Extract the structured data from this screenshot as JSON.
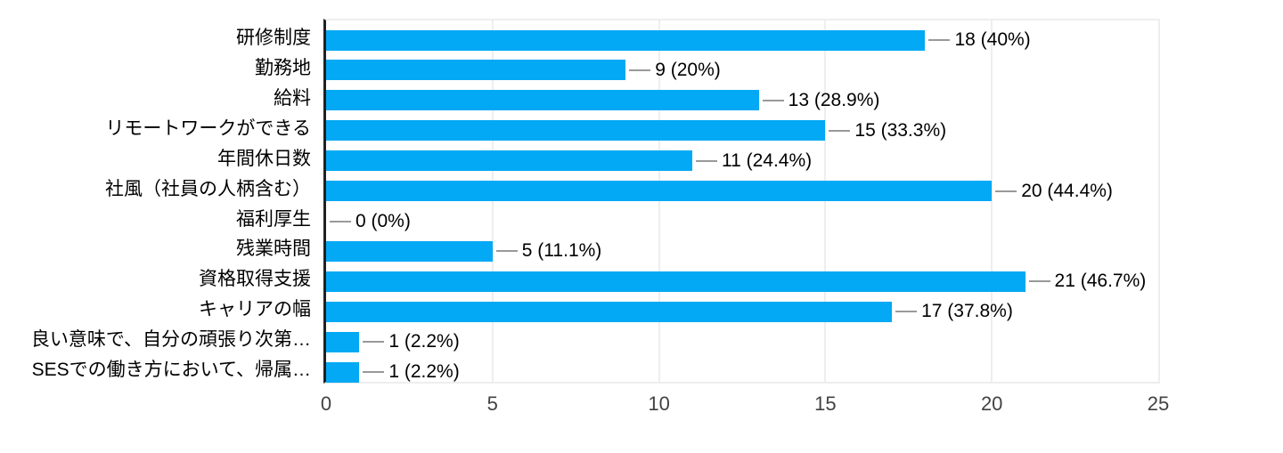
{
  "chart_data": {
    "type": "bar",
    "orientation": "horizontal",
    "categories": [
      "研修制度",
      "勤務地",
      "給料",
      "リモートワークができる",
      "年間休日数",
      "社風（社員の人柄含む）",
      "福利厚生",
      "残業時間",
      "資格取得支援",
      "キャリアの幅",
      "良い意味で、自分の頑張り次第…",
      "SESでの働き方において、帰属…"
    ],
    "values": [
      18,
      9,
      13,
      15,
      11,
      20,
      0,
      5,
      21,
      17,
      1,
      1
    ],
    "value_labels": [
      "18 (40%)",
      "9 (20%)",
      "13 (28.9%)",
      "15 (33.3%)",
      "11 (24.4%)",
      "20 (44.4%)",
      "0 (0%)",
      "5 (11.1%)",
      "21 (46.7%)",
      "17 (37.8%)",
      "1 (2.2%)",
      "1 (2.2%)"
    ],
    "xticks": [
      "0",
      "5",
      "10",
      "15",
      "20",
      "25"
    ],
    "xlim": [
      0,
      25
    ],
    "grid": true,
    "legend": "none",
    "title": "",
    "xlabel": "",
    "ylabel": "",
    "colors": {
      "bar": "#03a9f4",
      "axis": "#212121",
      "grid": "#eeeeee",
      "leader": "#999999",
      "label_text": "#000000",
      "tick_text": "#424242",
      "background": "#ffffff"
    }
  }
}
